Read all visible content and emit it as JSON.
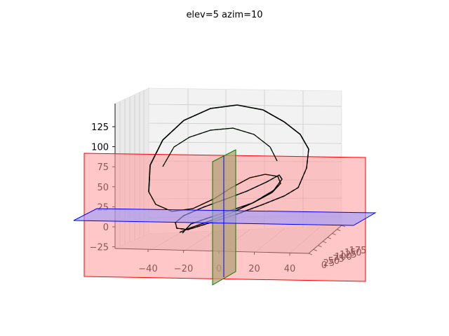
{
  "chart_data": {
    "type": "line",
    "projection": "3d",
    "title": "elev=5 azim=10",
    "view": {
      "elev": 5,
      "azim": 10
    },
    "xlabel": "",
    "ylabel": "",
    "zlabel": "",
    "grid": true,
    "pane_color": "#f2f2f2",
    "x_ticks": [
      "−40",
      "−20",
      "0",
      "20",
      "40"
    ],
    "y_ticks": [
      "0",
      "25",
      "50",
      "75",
      "100",
      "125",
      "150",
      "175"
    ],
    "z_ticks": [
      "−25",
      "0",
      "25",
      "50",
      "75",
      "100",
      "125"
    ],
    "xlim": [
      -50,
      50
    ],
    "ylim": [
      0,
      180
    ],
    "zlim": [
      -35,
      140
    ],
    "series": [
      {
        "color": "#000000",
        "style": "solid",
        "kind": "loop-curve"
      },
      {
        "color": "#ff7f0e",
        "style": "dashed",
        "kind": "loop-curve"
      },
      {
        "color": "#1f77b4",
        "style": "dashed",
        "kind": "loop-curve"
      },
      {
        "color": "#2ca02c",
        "style": "dashed",
        "kind": "loop-curve"
      },
      {
        "color": "#d62728",
        "style": "dashed",
        "kind": "loop-curve"
      }
    ],
    "planes": [
      {
        "color": "#ff0000",
        "fill": "#ff9999",
        "orientation": "xz"
      },
      {
        "color": "#0000ff",
        "fill": "#9999ff",
        "orientation": "xy"
      },
      {
        "color": "#008000",
        "fill": "#b3a37a",
        "orientation": "yz"
      }
    ]
  }
}
